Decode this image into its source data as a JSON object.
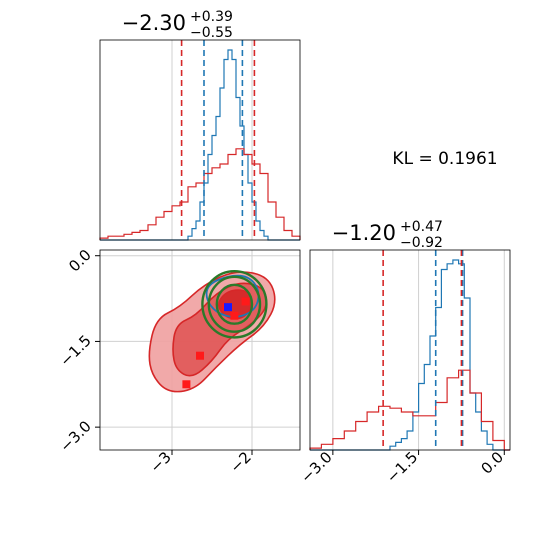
{
  "chart_data": {
    "type": "corner",
    "panels": [
      {
        "name": "marginal-param-1",
        "type": "step-histogram",
        "title": {
          "value": "−2.30",
          "plus": "+0.39",
          "minus": "−0.55"
        },
        "xlim": [
          -3.9,
          -1.4
        ],
        "grid_x": [
          -3,
          -2
        ],
        "series": [
          {
            "name": "",
            "color": "#1f77b4",
            "bin_edges": [
              -2.8,
              -2.75,
              -2.7,
              -2.65,
              -2.6,
              -2.55,
              -2.5,
              -2.45,
              -2.4,
              -2.35,
              -2.3,
              -2.25,
              -2.2,
              -2.15,
              -2.1,
              -2.05,
              -2.0,
              -1.95,
              -1.9,
              -1.85,
              -1.8
            ],
            "values": [
              0.02,
              0.06,
              0.1,
              0.2,
              0.3,
              0.45,
              0.55,
              0.65,
              0.8,
              0.95,
              1.0,
              0.95,
              0.75,
              0.6,
              0.45,
              0.3,
              0.2,
              0.1,
              0.05,
              0.02
            ]
          },
          {
            "name": "",
            "color": "#d62728",
            "bin_edges": [
              -3.9,
              -3.8,
              -3.7,
              -3.6,
              -3.5,
              -3.4,
              -3.3,
              -3.2,
              -3.1,
              -3.0,
              -2.9,
              -2.8,
              -2.7,
              -2.6,
              -2.5,
              -2.4,
              -2.3,
              -2.2,
              -2.1,
              -2.0,
              -1.9,
              -1.8,
              -1.7,
              -1.6,
              -1.5,
              -1.4
            ],
            "values": [
              0.01,
              0.02,
              0.02,
              0.03,
              0.04,
              0.05,
              0.08,
              0.12,
              0.15,
              0.18,
              0.2,
              0.28,
              0.3,
              0.35,
              0.38,
              0.4,
              0.45,
              0.48,
              0.45,
              0.4,
              0.35,
              0.2,
              0.12,
              0.05,
              0.02
            ]
          }
        ],
        "quantile_lines": [
          {
            "color": "#1f77b4",
            "x": [
              -2.6,
              -2.12
            ]
          },
          {
            "color": "#d62728",
            "x": [
              -2.88,
              -1.97
            ]
          }
        ]
      },
      {
        "name": "marginal-param-2",
        "type": "step-histogram",
        "title": {
          "value": "−1.20",
          "plus": "+0.47",
          "minus": "−0.92"
        },
        "xlim": [
          -3.4,
          0.1
        ],
        "grid_x": [
          -3.0,
          -1.5,
          0.0
        ],
        "series": [
          {
            "name": "",
            "color": "#1f77b4",
            "bin_edges": [
              -2.0,
              -1.9,
              -1.8,
              -1.7,
              -1.6,
              -1.5,
              -1.4,
              -1.3,
              -1.2,
              -1.1,
              -1.0,
              -0.9,
              -0.8,
              -0.7,
              -0.6,
              -0.5,
              -0.4,
              -0.3,
              -0.2
            ],
            "values": [
              0.02,
              0.04,
              0.06,
              0.1,
              0.2,
              0.35,
              0.45,
              0.6,
              0.75,
              0.95,
              0.98,
              1.0,
              0.98,
              0.8,
              0.3,
              0.2,
              0.1,
              0.03
            ]
          },
          {
            "name": "",
            "color": "#d62728",
            "bin_edges": [
              -3.4,
              -3.2,
              -3.0,
              -2.8,
              -2.6,
              -2.4,
              -2.2,
              -2.0,
              -1.8,
              -1.6,
              -1.4,
              -1.2,
              -1.0,
              -0.8,
              -0.6,
              -0.4,
              -0.2,
              0.0
            ],
            "values": [
              0.01,
              0.03,
              0.06,
              0.1,
              0.15,
              0.2,
              0.23,
              0.22,
              0.2,
              0.18,
              0.18,
              0.25,
              0.38,
              0.42,
              0.3,
              0.15,
              0.05
            ]
          }
        ],
        "quantile_lines": [
          {
            "color": "#1f77b4",
            "x": [
              -1.2,
              -0.73
            ]
          },
          {
            "color": "#d62728",
            "x": [
              -2.12,
              -0.75
            ]
          }
        ]
      },
      {
        "name": "joint-2d",
        "type": "contour-scatter",
        "xlim": [
          -3.9,
          -1.4
        ],
        "ylim": [
          -3.4,
          0.1
        ],
        "xticks": [
          {
            "value": -3,
            "label": "−3"
          },
          {
            "value": -2,
            "label": "−2"
          }
        ],
        "yticks": [
          {
            "value": 0.0,
            "label": "0.0"
          },
          {
            "value": -1.5,
            "label": "−1.5"
          },
          {
            "value": -3.0,
            "label": "−3.0"
          }
        ],
        "red_contours": [
          [
            [
              -3.3,
              -1.7
            ],
            [
              -3.2,
              -1.1
            ],
            [
              -2.9,
              -0.9
            ],
            [
              -2.6,
              -0.5
            ],
            [
              -2.2,
              -0.25
            ],
            [
              -1.8,
              -0.35
            ],
            [
              -1.68,
              -0.8
            ],
            [
              -1.85,
              -1.25
            ],
            [
              -2.15,
              -1.55
            ],
            [
              -2.45,
              -1.95
            ],
            [
              -2.72,
              -2.35
            ],
            [
              -3.05,
              -2.4
            ],
            [
              -3.25,
              -2.1
            ]
          ],
          [
            [
              -3.0,
              -1.65
            ],
            [
              -2.95,
              -1.2
            ],
            [
              -2.7,
              -1.05
            ],
            [
              -2.45,
              -0.65
            ],
            [
              -2.15,
              -0.45
            ],
            [
              -1.85,
              -0.55
            ],
            [
              -1.8,
              -0.9
            ],
            [
              -2.0,
              -1.2
            ],
            [
              -2.3,
              -1.45
            ],
            [
              -2.5,
              -1.85
            ],
            [
              -2.75,
              -2.15
            ],
            [
              -2.95,
              -2.0
            ]
          ],
          [
            [
              -2.45,
              -0.85
            ],
            [
              -2.3,
              -0.6
            ],
            [
              -2.05,
              -0.6
            ],
            [
              -1.98,
              -0.85
            ],
            [
              -2.1,
              -1.1
            ],
            [
              -2.32,
              -1.1
            ]
          ]
        ],
        "blue_contours": [
          [
            [
              -2.55,
              -0.5
            ],
            [
              -2.3,
              -0.35
            ],
            [
              -2.05,
              -0.35
            ],
            [
              -1.9,
              -0.6
            ],
            [
              -1.95,
              -0.95
            ],
            [
              -2.2,
              -1.1
            ],
            [
              -2.45,
              -1.0
            ],
            [
              -2.58,
              -0.75
            ]
          ]
        ],
        "green_ellipses": [
          {
            "cx": -2.22,
            "cy": -0.85,
            "rx": 0.22,
            "ry": 0.34
          },
          {
            "cx": -2.22,
            "cy": -0.85,
            "rx": 0.32,
            "ry": 0.48
          },
          {
            "cx": -2.22,
            "cy": -0.85,
            "rx": 0.4,
            "ry": 0.58
          }
        ],
        "red_points": [
          [
            -2.32,
            -0.9
          ],
          [
            -2.22,
            -1.05
          ],
          [
            -2.08,
            -0.8
          ],
          [
            -2.65,
            -1.75
          ],
          [
            -2.82,
            -2.25
          ]
        ],
        "blue_points": [
          [
            -2.3,
            -0.9
          ]
        ]
      }
    ],
    "annotation": {
      "label": "KL = 0.1961"
    }
  }
}
